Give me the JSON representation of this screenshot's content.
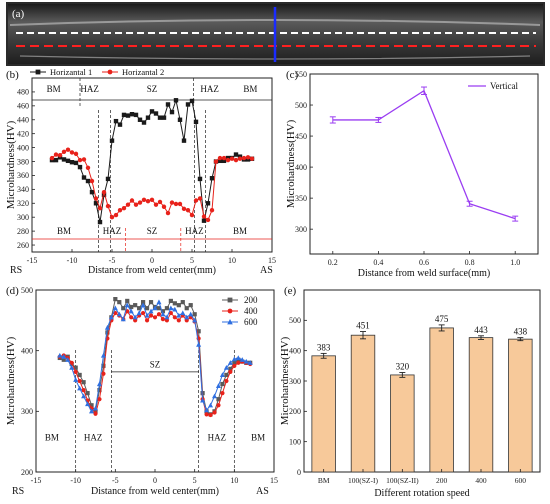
{
  "panel_labels": [
    "(a)",
    "(b)",
    "(c)",
    "(d)",
    "(e)"
  ],
  "colors": {
    "black": "#1a1a1a",
    "red": "#e8221b",
    "purple": "#9a3df2",
    "gray": "#5a5a5a",
    "blue": "#2f6fe0",
    "bar": "#f7c99a",
    "bar_edge": "#333333",
    "dash_white": "#ffffff",
    "dash_red": "#ff2020",
    "dash_blue": "#1a2bff"
  },
  "micrograph": {
    "description_labels": []
  },
  "chart_data": [
    {
      "id": "b",
      "type": "line",
      "xlabel": "Distance from weld center(mm)",
      "ylabel": "Microhardness(HV)",
      "xlim": [
        -15,
        15
      ],
      "ylim": [
        250,
        500
      ],
      "xticks": [
        -15,
        -10,
        -5,
        0,
        5,
        10,
        15
      ],
      "yticks": [
        260,
        280,
        300,
        320,
        340,
        360,
        380,
        400,
        420,
        440,
        460,
        480
      ],
      "corner_left": "RS",
      "corner_right": "AS",
      "series": [
        {
          "name": "Horizantal 1",
          "color": "#1a1a1a",
          "marker": "square",
          "x": [
            -12.5,
            -12,
            -11.5,
            -11,
            -10.5,
            -10,
            -9.5,
            -9,
            -8.5,
            -8,
            -7.5,
            -7,
            -6.5,
            -6,
            -5.5,
            -5,
            -4.5,
            -4,
            -3.5,
            -3,
            -2.5,
            -2,
            -1.5,
            -1,
            -0.5,
            0,
            0.5,
            1,
            1.5,
            2,
            2.5,
            3,
            3.5,
            4,
            4.5,
            5,
            5.5,
            6,
            6.5,
            7,
            7.5,
            8,
            8.5,
            9,
            9.5,
            10,
            10.5,
            11,
            11.5,
            12,
            12.5
          ],
          "y": [
            382,
            382,
            386,
            383,
            381,
            379,
            378,
            372,
            357,
            352,
            336,
            320,
            293,
            332,
            355,
            410,
            438,
            433,
            447,
            446,
            448,
            447,
            440,
            436,
            443,
            452,
            449,
            443,
            443,
            462,
            451,
            468,
            440,
            410,
            462,
            467,
            437,
            355,
            295,
            320,
            356,
            380,
            381,
            381,
            385,
            385,
            390,
            387,
            383,
            383,
            384
          ]
        },
        {
          "name": "Horizantal 2",
          "color": "#e8221b",
          "marker": "circle",
          "x": [
            -12.5,
            -12,
            -11.5,
            -11,
            -10.5,
            -10,
            -9.5,
            -9,
            -8.5,
            -8,
            -7.5,
            -7,
            -6.5,
            -6,
            -5.5,
            -5,
            -4.5,
            -4,
            -3.5,
            -3,
            -2.5,
            -2,
            -1.5,
            -1,
            -0.5,
            0,
            0.5,
            1,
            1.5,
            2,
            2.5,
            3,
            3.5,
            4,
            4.5,
            5,
            5.5,
            6,
            6.5,
            7,
            7.5,
            8,
            8.5,
            9,
            9.5,
            10,
            10.5,
            11,
            11.5,
            12,
            12.5
          ],
          "y": [
            385,
            390,
            389,
            394,
            397,
            393,
            391,
            382,
            383,
            371,
            352,
            327,
            313,
            336,
            316,
            300,
            303,
            310,
            313,
            318,
            324,
            318,
            321,
            325,
            323,
            325,
            318,
            322,
            315,
            306,
            321,
            319,
            319,
            312,
            310,
            303,
            324,
            327,
            301,
            296,
            310,
            380,
            385,
            385,
            382,
            384,
            382,
            384,
            385,
            386,
            384
          ]
        }
      ],
      "regions_top": [
        "BM",
        "HAZ",
        "SZ",
        "HAZ",
        "BM"
      ],
      "regions_bottom": [
        "BM",
        "HAZ",
        "SZ",
        "HAZ",
        "BM"
      ]
    },
    {
      "id": "c",
      "type": "line",
      "xlabel": "Distance from weld surface(mm)",
      "ylabel": "Microhardness(HV)",
      "xlim": [
        0.1,
        1.1
      ],
      "ylim": [
        260,
        550
      ],
      "xticks": [
        0.2,
        0.4,
        0.6,
        0.8,
        1.0
      ],
      "xtick_labels": [
        "0.2",
        "0.4",
        "0.6",
        "0.8",
        "1.0"
      ],
      "yticks": [
        300,
        350,
        400,
        450,
        500,
        550
      ],
      "series": [
        {
          "name": "Vertical",
          "color": "#9a3df2",
          "marker": "none",
          "x": [
            0.2,
            0.4,
            0.6,
            0.8,
            1.0
          ],
          "y": [
            476,
            476,
            523,
            341,
            317
          ],
          "err": [
            5,
            4,
            6,
            4,
            4
          ]
        }
      ]
    },
    {
      "id": "d",
      "type": "line",
      "xlabel": "Distance from weld center(mm)",
      "ylabel": "Microhardness(HV)",
      "xlim": [
        -15,
        15
      ],
      "ylim": [
        200,
        500
      ],
      "xticks": [
        -15,
        -10,
        -5,
        0,
        5,
        10,
        15
      ],
      "yticks": [
        200,
        300,
        400,
        500
      ],
      "corner_left": "RS",
      "corner_right": "AS",
      "series": [
        {
          "name": "200",
          "color": "#5a5a5a",
          "marker": "square",
          "x": [
            -12,
            -11.5,
            -11,
            -10.5,
            -10,
            -9.5,
            -9,
            -8.5,
            -8,
            -7.5,
            -7,
            -6.5,
            -6,
            -5.5,
            -5,
            -4.5,
            -4,
            -3.5,
            -3,
            -2.5,
            -2,
            -1.5,
            -1,
            -0.5,
            0,
            0.5,
            1,
            1.5,
            2,
            2.5,
            3,
            3.5,
            4,
            4.5,
            5,
            5.5,
            6,
            6.5,
            7,
            7.5,
            8,
            8.5,
            9,
            9.5,
            10,
            10.5,
            11,
            11.5,
            12
          ],
          "y": [
            388,
            385,
            390,
            378,
            372,
            360,
            348,
            330,
            310,
            300,
            335,
            375,
            430,
            455,
            485,
            480,
            470,
            482,
            472,
            475,
            470,
            480,
            470,
            480,
            472,
            470,
            465,
            470,
            482,
            478,
            475,
            480,
            470,
            475,
            460,
            432,
            330,
            300,
            295,
            300,
            320,
            345,
            360,
            370,
            380,
            385,
            382,
            380,
            380
          ]
        },
        {
          "name": "400",
          "color": "#e8221b",
          "marker": "circle",
          "x": [
            -12,
            -11.5,
            -11,
            -10.5,
            -10,
            -9.5,
            -9,
            -8.5,
            -8,
            -7.5,
            -7,
            -6.5,
            -6,
            -5.5,
            -5,
            -4.5,
            -4,
            -3.5,
            -3,
            -2.5,
            -2,
            -1.5,
            -1,
            -0.5,
            0,
            0.5,
            1,
            1.5,
            2,
            2.5,
            3,
            3.5,
            4,
            4.5,
            5,
            5.5,
            6,
            6.5,
            7,
            7.5,
            8,
            8.5,
            9,
            9.5,
            10,
            10.5,
            11,
            11.5,
            12
          ],
          "y": [
            390,
            392,
            388,
            380,
            365,
            350,
            335,
            318,
            305,
            296,
            320,
            362,
            420,
            450,
            462,
            458,
            452,
            465,
            455,
            450,
            458,
            462,
            450,
            458,
            455,
            460,
            452,
            450,
            462,
            455,
            450,
            458,
            450,
            455,
            448,
            420,
            320,
            295,
            294,
            298,
            310,
            330,
            350,
            365,
            375,
            380,
            382,
            380,
            378
          ]
        },
        {
          "name": "600",
          "color": "#2f6fe0",
          "marker": "triangle",
          "x": [
            -12,
            -11.5,
            -11,
            -10.5,
            -10,
            -9.5,
            -9,
            -8.5,
            -8,
            -7.5,
            -7,
            -6.5,
            -6,
            -5.5,
            -5,
            -4.5,
            -4,
            -3.5,
            -3,
            -2.5,
            -2,
            -1.5,
            -1,
            -0.5,
            0,
            0.5,
            1,
            1.5,
            2,
            2.5,
            3,
            3.5,
            4,
            4.5,
            5,
            5.5,
            6,
            6.5,
            7,
            7.5,
            8,
            8.5,
            9,
            9.5,
            10,
            10.5,
            11,
            11.5,
            12
          ],
          "y": [
            392,
            390,
            385,
            372,
            352,
            338,
            325,
            312,
            300,
            305,
            345,
            392,
            438,
            455,
            470,
            460,
            452,
            475,
            465,
            455,
            462,
            475,
            458,
            465,
            470,
            480,
            460,
            455,
            470,
            468,
            458,
            462,
            455,
            460,
            450,
            410,
            318,
            302,
            310,
            325,
            342,
            360,
            372,
            380,
            386,
            388,
            385,
            382,
            380
          ]
        }
      ],
      "regions": [
        "BM",
        "HAZ",
        "SZ",
        "HAZ",
        "BM"
      ]
    },
    {
      "id": "e",
      "type": "bar",
      "xlabel": "Different rotation speed",
      "ylabel": "Microhardness(HV)",
      "ylim": [
        0,
        600
      ],
      "yticks": [
        0,
        100,
        200,
        300,
        400,
        500
      ],
      "categories": [
        "BM",
        "100(SZ-I)",
        "100(SZ-II)",
        "200",
        "400",
        "600"
      ],
      "values": [
        383,
        451,
        320,
        475,
        443,
        438
      ],
      "value_labels": [
        "383",
        "451",
        "320",
        "475",
        "443",
        "438"
      ],
      "err": [
        8,
        12,
        8,
        10,
        6,
        5
      ]
    }
  ]
}
